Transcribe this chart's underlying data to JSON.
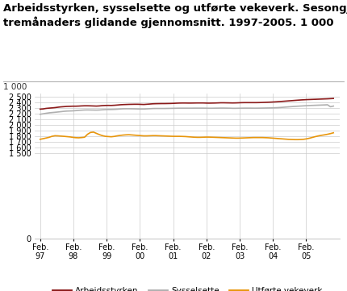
{
  "title": "Arbeidsstyrken, sysselsette og utførte vekeverk. Sesongjusterte tal,\ntremånaders glidande gjennomsnitt. 1997-2005. 1 000",
  "title_fontsize": 9.5,
  "unit_label": "1 000",
  "yticks": [
    0,
    1500,
    1600,
    1700,
    1800,
    1900,
    2000,
    2100,
    2200,
    2300,
    2400,
    2500
  ],
  "ylim": [
    0,
    2560
  ],
  "xtick_labels": [
    "Feb.\n97",
    "Feb.\n98",
    "Feb.\n99",
    "Feb.\n00",
    "Feb.\n01",
    "Feb.\n02",
    "Feb.\n03",
    "Feb.\n04",
    "Feb.\n05"
  ],
  "legend_labels": [
    "Arbeidsstyrken",
    "Sysselsette",
    "Utførte vekeverk"
  ],
  "line_colors": [
    "#8B1A1A",
    "#B0B0B0",
    "#E8960C"
  ],
  "background_color": "#FFFFFF",
  "grid_color": "#CCCCCC",
  "arbeidsstyrken": [
    2278,
    2282,
    2291,
    2296,
    2300,
    2305,
    2312,
    2318,
    2322,
    2326,
    2328,
    2330,
    2330,
    2332,
    2335,
    2337,
    2337,
    2336,
    2334,
    2332,
    2335,
    2340,
    2343,
    2344,
    2343,
    2346,
    2350,
    2355,
    2358,
    2360,
    2362,
    2363,
    2364,
    2364,
    2362,
    2360,
    2364,
    2368,
    2372,
    2374,
    2375,
    2376,
    2376,
    2377,
    2378,
    2380,
    2383,
    2385,
    2386,
    2386,
    2385,
    2385,
    2386,
    2387,
    2387,
    2387,
    2385,
    2384,
    2385,
    2386,
    2388,
    2390,
    2390,
    2389,
    2388,
    2387,
    2388,
    2390,
    2392,
    2393,
    2393,
    2393,
    2393,
    2393,
    2394,
    2396,
    2398,
    2400,
    2402,
    2405,
    2408,
    2412,
    2416,
    2420,
    2424,
    2428,
    2432,
    2436,
    2440,
    2443,
    2446,
    2448,
    2450,
    2452,
    2454,
    2456,
    2458,
    2460,
    2463,
    2466
  ],
  "sysselsette": [
    2188,
    2196,
    2205,
    2213,
    2218,
    2223,
    2228,
    2234,
    2240,
    2244,
    2246,
    2248,
    2252,
    2257,
    2260,
    2263,
    2264,
    2263,
    2262,
    2261,
    2263,
    2267,
    2270,
    2272,
    2272,
    2274,
    2277,
    2281,
    2284,
    2285,
    2285,
    2284,
    2283,
    2281,
    2280,
    2280,
    2283,
    2286,
    2289,
    2290,
    2290,
    2290,
    2290,
    2291,
    2292,
    2293,
    2294,
    2295,
    2295,
    2295,
    2295,
    2295,
    2296,
    2296,
    2296,
    2296,
    2295,
    2294,
    2294,
    2295,
    2296,
    2297,
    2297,
    2296,
    2295,
    2293,
    2293,
    2294,
    2295,
    2296,
    2296,
    2296,
    2295,
    2295,
    2296,
    2297,
    2298,
    2299,
    2300,
    2302,
    2304,
    2307,
    2311,
    2315,
    2319,
    2323,
    2327,
    2330,
    2333,
    2336,
    2339,
    2342,
    2344,
    2346,
    2348,
    2350,
    2352,
    2355,
    2320,
    2332
  ],
  "utforte_vekeverk": [
    1748,
    1758,
    1770,
    1782,
    1800,
    1810,
    1808,
    1804,
    1800,
    1795,
    1790,
    1782,
    1776,
    1774,
    1778,
    1784,
    1836,
    1868,
    1874,
    1852,
    1830,
    1812,
    1800,
    1796,
    1792,
    1798,
    1808,
    1816,
    1822,
    1826,
    1828,
    1824,
    1820,
    1816,
    1812,
    1808,
    1808,
    1810,
    1812,
    1812,
    1810,
    1808,
    1806,
    1804,
    1802,
    1800,
    1800,
    1800,
    1798,
    1796,
    1792,
    1788,
    1784,
    1782,
    1782,
    1784,
    1786,
    1786,
    1784,
    1782,
    1780,
    1778,
    1776,
    1774,
    1772,
    1770,
    1768,
    1768,
    1770,
    1772,
    1774,
    1776,
    1778,
    1778,
    1778,
    1778,
    1776,
    1774,
    1770,
    1766,
    1762,
    1758,
    1754,
    1750,
    1746,
    1744,
    1742,
    1742,
    1744,
    1748,
    1756,
    1768,
    1782,
    1796,
    1808,
    1818,
    1826,
    1836,
    1848,
    1862
  ]
}
